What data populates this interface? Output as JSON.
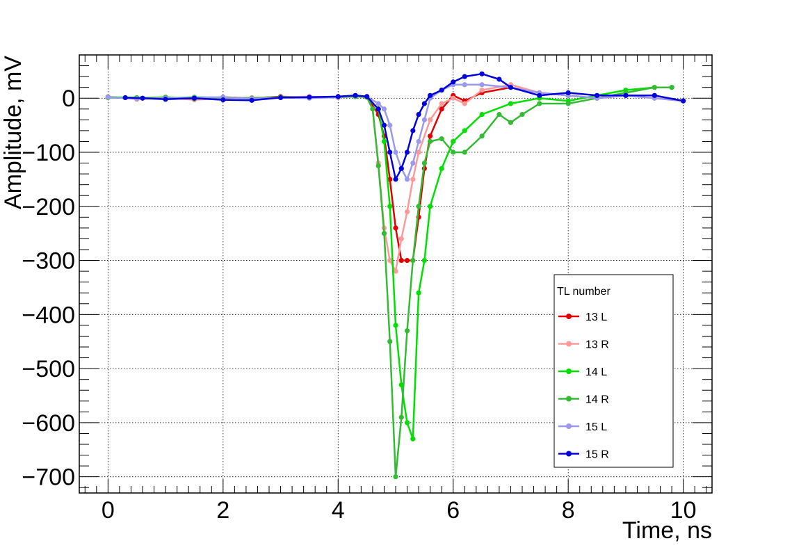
{
  "chart_data": {
    "type": "line",
    "xlabel": "Time, ns",
    "ylabel": "Amplitude, mV",
    "xlim": [
      -0.5,
      10.5
    ],
    "ylim": [
      -730,
      80
    ],
    "x_ticks": [
      0,
      2,
      4,
      6,
      8,
      10
    ],
    "y_ticks": [
      0,
      -100,
      -200,
      -300,
      -400,
      -500,
      -600,
      -700
    ],
    "x_tick_labels": [
      "0",
      "2",
      "4",
      "6",
      "8",
      "10"
    ],
    "y_tick_labels": [
      "0",
      "−100",
      "−200",
      "−300",
      "−400",
      "−500",
      "−600",
      "−700"
    ],
    "grid": true,
    "legend_title": "TL number",
    "legend_position": "bottom-right",
    "series": [
      {
        "name": "13 L",
        "color": "#e00000",
        "x": [
          0,
          0.5,
          1,
          1.5,
          2,
          2.5,
          3,
          3.5,
          4,
          4.3,
          4.5,
          4.7,
          4.8,
          4.9,
          5.0,
          5.1,
          5.2,
          5.3,
          5.4,
          5.5,
          5.6,
          5.8,
          6.0,
          6.2,
          6.5,
          7.0,
          7.5,
          8.0,
          8.5,
          9.0,
          9.5,
          10.0
        ],
        "y": [
          2,
          0,
          1,
          -1,
          2,
          0,
          3,
          1,
          2,
          4,
          3,
          -30,
          -70,
          -150,
          -240,
          -300,
          -300,
          -300,
          -220,
          -130,
          -70,
          -20,
          5,
          -5,
          10,
          20,
          10,
          5,
          0,
          5,
          5,
          -5
        ]
      },
      {
        "name": "13 R",
        "color": "#ff9999",
        "x": [
          0,
          0.5,
          1,
          1.5,
          2,
          2.5,
          3,
          3.5,
          4,
          4.3,
          4.5,
          4.6,
          4.7,
          4.8,
          4.9,
          5.0,
          5.1,
          5.2,
          5.3,
          5.4,
          5.6,
          5.8,
          6.0,
          6.2,
          6.5,
          7.0,
          7.5,
          8.0,
          8.5,
          9.0,
          9.5,
          10.0
        ],
        "y": [
          3,
          -2,
          1,
          -3,
          0,
          1,
          2,
          3,
          1,
          4,
          2,
          -20,
          -120,
          -240,
          -300,
          -320,
          -260,
          -210,
          -150,
          -100,
          -40,
          -10,
          0,
          -10,
          15,
          25,
          10,
          5,
          0,
          5,
          0,
          -5
        ]
      },
      {
        "name": "14 L",
        "color": "#00e000",
        "x": [
          0,
          0.5,
          1,
          1.5,
          2,
          2.5,
          3,
          3.5,
          4,
          4.3,
          4.5,
          4.7,
          4.8,
          4.9,
          5.0,
          5.1,
          5.2,
          5.3,
          5.4,
          5.5,
          5.6,
          5.8,
          6.0,
          6.2,
          6.5,
          7.0,
          7.5,
          8.0,
          8.5,
          9.0,
          9.5,
          9.8
        ],
        "y": [
          2,
          1,
          0,
          2,
          1,
          0,
          2,
          1,
          2,
          4,
          2,
          -20,
          -80,
          -200,
          -420,
          -530,
          -600,
          -630,
          -360,
          -300,
          -200,
          -130,
          -80,
          -60,
          -30,
          -10,
          0,
          -5,
          5,
          15,
          20,
          20
        ]
      },
      {
        "name": "14 R",
        "color": "#33bb33",
        "x": [
          0,
          0.5,
          1,
          1.5,
          2,
          2.5,
          3,
          3.5,
          4,
          4.3,
          4.5,
          4.6,
          4.7,
          4.8,
          4.9,
          5.0,
          5.1,
          5.2,
          5.3,
          5.4,
          5.5,
          5.6,
          5.8,
          6.0,
          6.2,
          6.5,
          6.8,
          7.0,
          7.2,
          7.5,
          8.0,
          8.5,
          9.0,
          9.5,
          9.8
        ],
        "y": [
          1,
          0,
          2,
          -1,
          1,
          0,
          2,
          1,
          2,
          3,
          2,
          -20,
          -125,
          -250,
          -450,
          -700,
          -590,
          -430,
          -300,
          -200,
          -120,
          -80,
          -75,
          -100,
          -100,
          -70,
          -30,
          -45,
          -30,
          -10,
          -10,
          0,
          10,
          20,
          20
        ]
      },
      {
        "name": "15 L",
        "color": "#9999ee",
        "x": [
          0,
          0.5,
          1,
          1.5,
          2,
          2.5,
          3,
          3.5,
          4,
          4.3,
          4.5,
          4.7,
          4.8,
          4.9,
          5.0,
          5.1,
          5.2,
          5.3,
          5.4,
          5.5,
          5.6,
          5.8,
          6.0,
          6.2,
          6.5,
          7.0,
          7.5,
          8.0,
          8.5,
          9.0,
          9.5,
          10.0
        ],
        "y": [
          2,
          -1,
          0,
          1,
          2,
          -1,
          1,
          0,
          2,
          5,
          3,
          -10,
          -20,
          -50,
          -100,
          -130,
          -150,
          -120,
          -80,
          -40,
          0,
          15,
          25,
          25,
          25,
          20,
          10,
          5,
          0,
          5,
          0,
          -5
        ]
      },
      {
        "name": "15 R",
        "color": "#0000dd",
        "x": [
          0.3,
          0.6,
          1,
          1.5,
          2,
          2.5,
          3,
          3.5,
          4,
          4.3,
          4.5,
          4.7,
          4.8,
          4.9,
          5.0,
          5.1,
          5.2,
          5.3,
          5.4,
          5.5,
          5.6,
          5.8,
          6.0,
          6.2,
          6.5,
          6.8,
          7.0,
          7.5,
          8.0,
          8.5,
          9.0,
          9.5,
          10.0
        ],
        "y": [
          1,
          0,
          -2,
          0,
          -3,
          -4,
          1,
          2,
          3,
          5,
          3,
          -20,
          -50,
          -100,
          -150,
          -130,
          -100,
          -60,
          -30,
          -10,
          5,
          15,
          30,
          40,
          45,
          35,
          20,
          5,
          10,
          5,
          5,
          5,
          -5
        ]
      }
    ]
  }
}
